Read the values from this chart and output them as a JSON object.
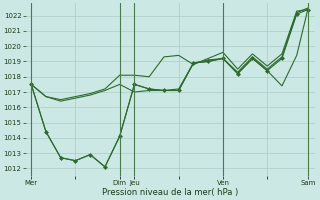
{
  "xlabel": "Pression niveau de la mer( hPa )",
  "bg_color": "#cce8e4",
  "line_color": "#2d6a2d",
  "grid_color": "#aaccc8",
  "vline_color": "#4a7a4a",
  "ylim": [
    1011.5,
    1022.8
  ],
  "yticks": [
    1012,
    1013,
    1014,
    1015,
    1016,
    1017,
    1018,
    1019,
    1020,
    1021,
    1022
  ],
  "xtick_labels": [
    "Mer",
    "",
    "Dim",
    "Jeu",
    "",
    "Ven",
    "",
    "Sam"
  ],
  "xtick_positions": [
    0,
    24,
    48,
    56,
    80,
    104,
    128,
    150
  ],
  "vline_positions": [
    0,
    48,
    56,
    104,
    150
  ],
  "series": [
    {
      "x": [
        0,
        8,
        16,
        24,
        32,
        40,
        48,
        56,
        64,
        72,
        80,
        88,
        96,
        104,
        112,
        120,
        128,
        136,
        144,
        150
      ],
      "y": [
        1017.5,
        1016.7,
        1016.5,
        1016.7,
        1016.9,
        1017.2,
        1018.1,
        1018.1,
        1018.0,
        1019.3,
        1019.4,
        1018.8,
        1019.2,
        1019.6,
        1018.5,
        1019.5,
        1018.7,
        1019.5,
        1022.3,
        1022.4
      ],
      "marker": false
    },
    {
      "x": [
        0,
        8,
        16,
        24,
        32,
        40,
        48,
        56,
        64,
        72,
        80,
        88,
        96,
        104,
        112,
        120,
        128,
        136,
        144,
        150
      ],
      "y": [
        1017.5,
        1016.7,
        1016.4,
        1016.6,
        1016.8,
        1017.1,
        1017.5,
        1017.0,
        1017.1,
        1017.1,
        1017.2,
        1018.9,
        1019.1,
        1019.2,
        1018.3,
        1019.3,
        1018.5,
        1019.3,
        1022.2,
        1022.5
      ],
      "marker": false
    },
    {
      "x": [
        0,
        8,
        16,
        24,
        32,
        40,
        48,
        56,
        64,
        72,
        80,
        88,
        96,
        104,
        112,
        120,
        128,
        136,
        144,
        150
      ],
      "y": [
        1017.5,
        1014.4,
        1012.7,
        1012.5,
        1012.9,
        1012.1,
        1014.1,
        1017.5,
        1017.2,
        1017.1,
        1017.1,
        1018.9,
        1019.0,
        1019.2,
        1018.2,
        1019.2,
        1018.4,
        1019.2,
        1022.1,
        1022.4
      ],
      "marker": true
    },
    {
      "x": [
        0,
        8,
        16,
        24,
        32,
        40,
        48,
        56,
        64,
        72,
        80,
        88,
        96,
        104,
        112,
        120,
        128,
        136,
        144,
        150
      ],
      "y": [
        1017.5,
        1014.4,
        1012.7,
        1012.5,
        1012.9,
        1012.1,
        1014.1,
        1017.5,
        1017.2,
        1017.1,
        1017.1,
        1018.9,
        1019.0,
        1019.2,
        1018.2,
        1019.2,
        1018.4,
        1017.4,
        1019.4,
        1022.4
      ],
      "marker": false
    }
  ],
  "figwidth": 3.2,
  "figheight": 2.0,
  "dpi": 100
}
